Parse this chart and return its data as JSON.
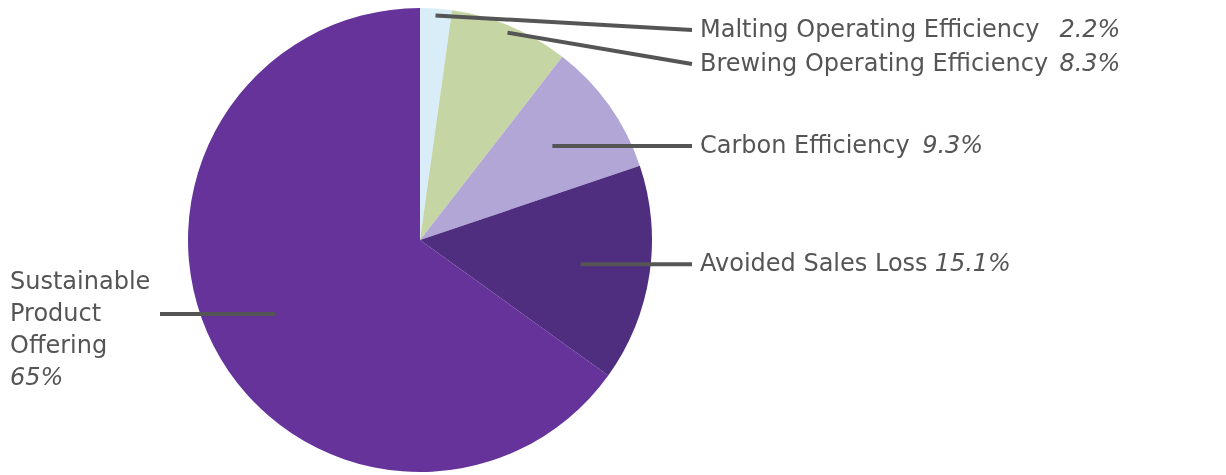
{
  "chart_data": {
    "type": "pie",
    "categories": [
      "Malting Operating Efficiency",
      "Brewing Operating Efficiency",
      "Carbon Efficiency",
      "Avoided Sales Loss",
      "Sustainable Product Offering"
    ],
    "values": [
      2.2,
      8.3,
      9.3,
      15.1,
      65
    ],
    "colors": [
      "#d8edf8",
      "#c6d5a4",
      "#b1a6d5",
      "#4f2e80",
      "#65339a"
    ],
    "value_labels": [
      "2.2%",
      "8.3%",
      "9.3%",
      "15.1%",
      "65%"
    ]
  }
}
